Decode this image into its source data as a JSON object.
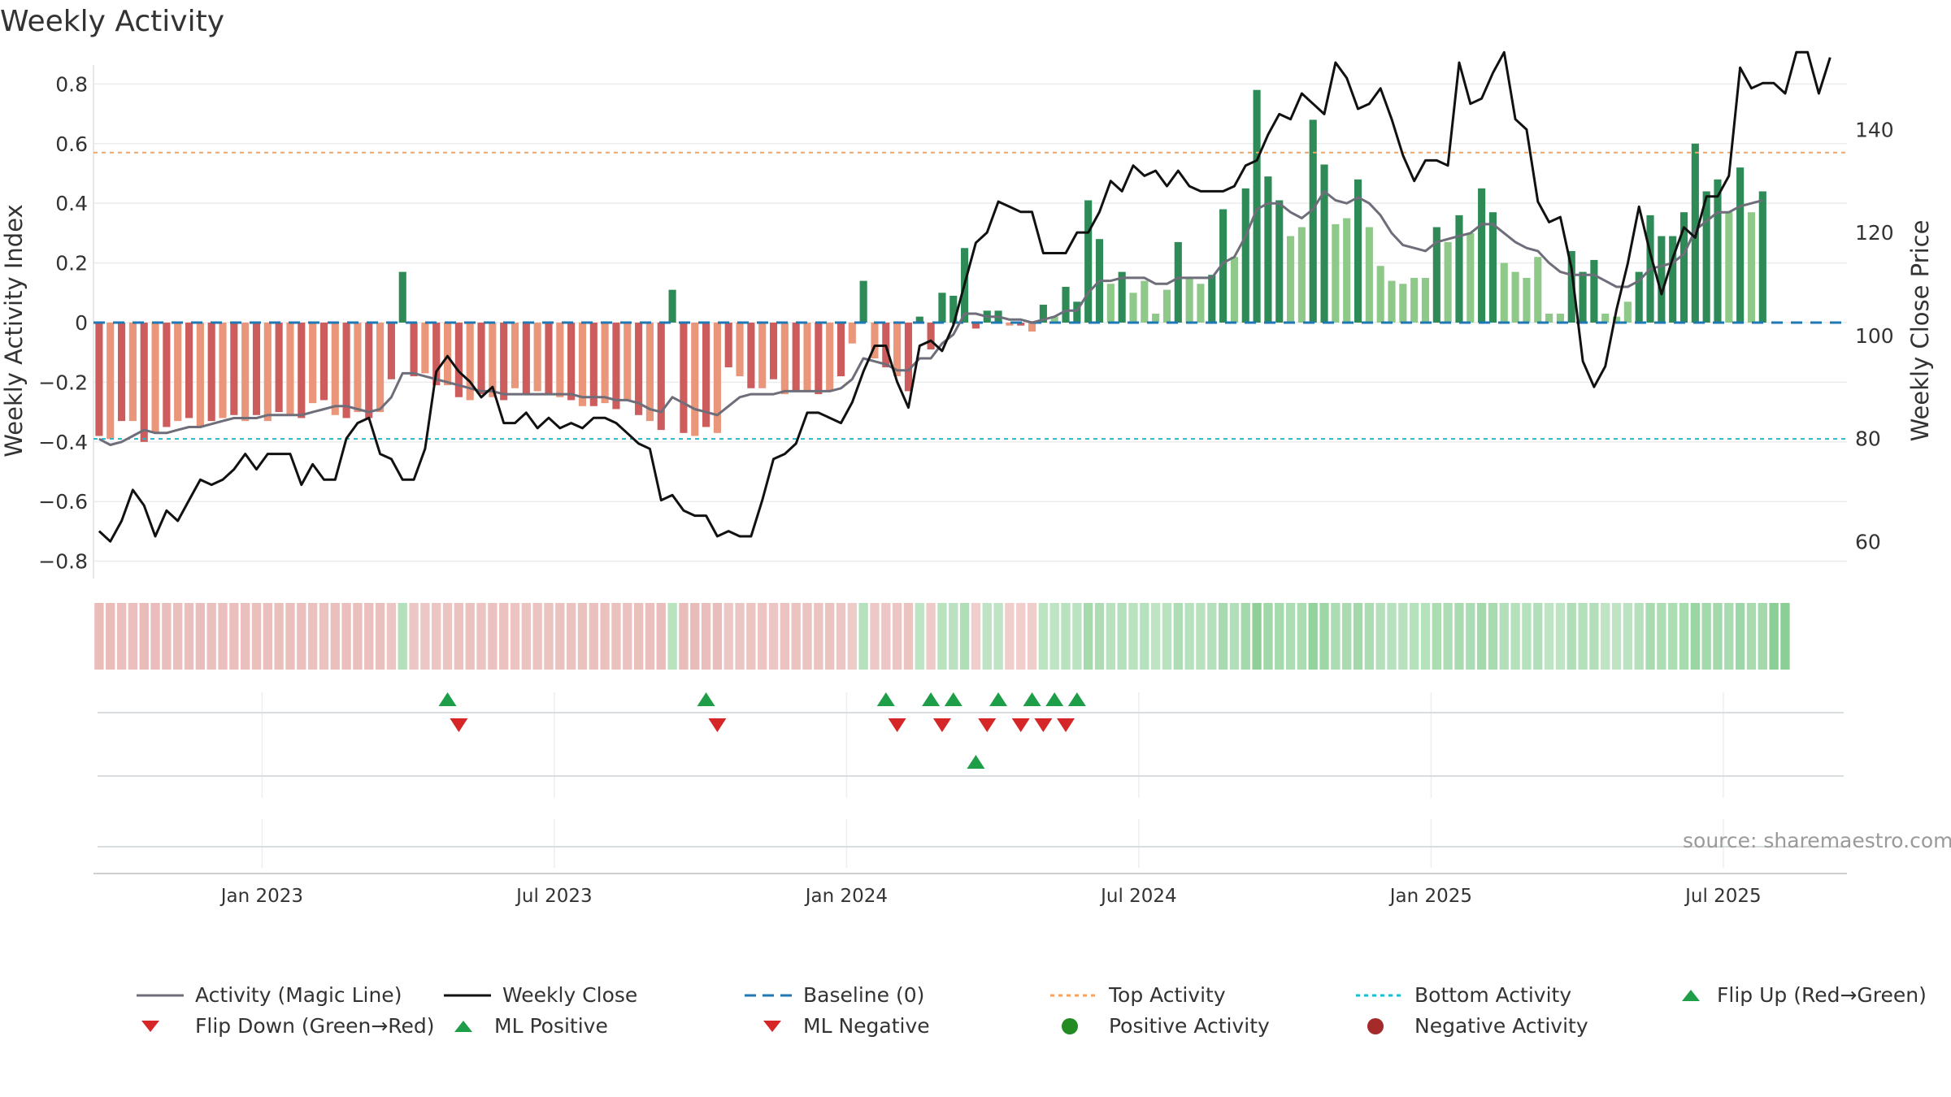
{
  "title": "Weekly Activity",
  "source": "source: sharemaestro.com",
  "colors": {
    "pos_strong": "#2e8b57",
    "pos_light": "#8fc98a",
    "neg_strong": "#cd5c5c",
    "neg_light": "#e9967a",
    "magic": "#6e6e7a",
    "close": "#111111",
    "baseline": "#1f77b4",
    "top": "#f4a460",
    "bottom": "#17becf",
    "flip_up": "#1f9e4a",
    "flip_down": "#d62728"
  },
  "chart_data": {
    "type": "bar",
    "title": "Weekly Activity",
    "ylabel": "Weekly Activity Index",
    "y2label": "Weekly Close Price",
    "ylim": [
      -0.82,
      0.82
    ],
    "y2lim": [
      55,
      150
    ],
    "yticks": [
      "0.8",
      "0.6",
      "0.4",
      "0.2",
      "0",
      "−0.2",
      "−0.4",
      "−0.6",
      "−0.8"
    ],
    "ytick_values": [
      0.8,
      0.6,
      0.4,
      0.2,
      0,
      -0.2,
      -0.4,
      -0.6,
      -0.8
    ],
    "y2ticks": [
      "140",
      "120",
      "100",
      "80",
      "60"
    ],
    "y2tick_values": [
      140,
      120,
      100,
      80,
      60
    ],
    "xticks": [
      "Jan 2023",
      "Jul 2023",
      "Jan 2024",
      "Jul 2024",
      "Jan 2025",
      "Jul 2025"
    ],
    "xtick_weeks": [
      15,
      41,
      67,
      93,
      119,
      145
    ],
    "top_activity": 0.57,
    "bottom_activity": -0.39,
    "activity": [
      -0.38,
      -0.39,
      -0.33,
      -0.33,
      -0.4,
      -0.37,
      -0.35,
      -0.33,
      -0.32,
      -0.35,
      -0.33,
      -0.32,
      -0.31,
      -0.33,
      -0.31,
      -0.33,
      -0.3,
      -0.31,
      -0.32,
      -0.27,
      -0.26,
      -0.31,
      -0.32,
      -0.3,
      -0.32,
      -0.3,
      -0.19,
      0.17,
      -0.18,
      -0.17,
      -0.21,
      -0.21,
      -0.25,
      -0.26,
      -0.24,
      -0.25,
      -0.26,
      -0.22,
      -0.24,
      -0.23,
      -0.24,
      -0.25,
      -0.26,
      -0.28,
      -0.28,
      -0.27,
      -0.29,
      -0.26,
      -0.31,
      -0.33,
      -0.36,
      0.11,
      -0.37,
      -0.38,
      -0.35,
      -0.37,
      -0.15,
      -0.18,
      -0.22,
      -0.22,
      -0.19,
      -0.24,
      -0.23,
      -0.23,
      -0.24,
      -0.23,
      -0.18,
      -0.07,
      0.14,
      -0.12,
      -0.15,
      -0.18,
      -0.23,
      0.02,
      -0.09,
      0.1,
      0.09,
      0.25,
      -0.02,
      0.04,
      0.04,
      -0.01,
      -0.01,
      -0.03,
      0.06,
      0.02,
      0.12,
      0.07,
      0.41,
      0.28,
      0.13,
      0.17,
      0.1,
      0.14,
      0.03,
      0.11,
      0.27,
      0.15,
      0.13,
      0.16,
      0.38,
      0.22,
      0.45,
      0.78,
      0.49,
      0.41,
      0.29,
      0.32,
      0.68,
      0.53,
      0.33,
      0.35,
      0.48,
      0.32,
      0.19,
      0.14,
      0.13,
      0.15,
      0.15,
      0.32,
      0.27,
      0.36,
      0.3,
      0.45,
      0.37,
      0.2,
      0.17,
      0.15,
      0.22,
      0.03,
      0.03,
      0.24,
      0.17,
      0.21,
      0.03,
      0.02,
      0.07,
      0.17,
      0.36,
      0.29,
      0.29,
      0.37,
      0.6,
      0.44,
      0.48,
      0.37,
      0.52,
      0.37,
      0.44
    ],
    "magic_line": [
      -0.39,
      -0.41,
      -0.4,
      -0.38,
      -0.36,
      -0.37,
      -0.37,
      -0.36,
      -0.35,
      -0.35,
      -0.34,
      -0.33,
      -0.32,
      -0.32,
      -0.32,
      -0.31,
      -0.31,
      -0.31,
      -0.31,
      -0.3,
      -0.29,
      -0.28,
      -0.28,
      -0.29,
      -0.3,
      -0.29,
      -0.25,
      -0.17,
      -0.17,
      -0.18,
      -0.19,
      -0.2,
      -0.21,
      -0.22,
      -0.23,
      -0.23,
      -0.24,
      -0.24,
      -0.24,
      -0.24,
      -0.24,
      -0.24,
      -0.24,
      -0.25,
      -0.25,
      -0.25,
      -0.26,
      -0.26,
      -0.27,
      -0.29,
      -0.3,
      -0.25,
      -0.27,
      -0.29,
      -0.3,
      -0.31,
      -0.28,
      -0.25,
      -0.24,
      -0.24,
      -0.24,
      -0.23,
      -0.23,
      -0.23,
      -0.23,
      -0.23,
      -0.22,
      -0.19,
      -0.12,
      -0.13,
      -0.14,
      -0.16,
      -0.16,
      -0.12,
      -0.12,
      -0.07,
      -0.04,
      0.03,
      0.03,
      0.02,
      0.02,
      0.01,
      0.01,
      0.0,
      0.01,
      0.02,
      0.04,
      0.04,
      0.1,
      0.14,
      0.14,
      0.15,
      0.15,
      0.15,
      0.13,
      0.13,
      0.15,
      0.15,
      0.15,
      0.15,
      0.2,
      0.22,
      0.29,
      0.38,
      0.4,
      0.4,
      0.37,
      0.35,
      0.38,
      0.44,
      0.41,
      0.4,
      0.42,
      0.4,
      0.36,
      0.3,
      0.26,
      0.25,
      0.24,
      0.27,
      0.28,
      0.29,
      0.3,
      0.33,
      0.33,
      0.3,
      0.27,
      0.25,
      0.24,
      0.2,
      0.17,
      0.16,
      0.16,
      0.16,
      0.14,
      0.12,
      0.12,
      0.14,
      0.18,
      0.19,
      0.2,
      0.23,
      0.31,
      0.34,
      0.37,
      0.37,
      0.39,
      0.4,
      0.41
    ],
    "weekly_close": [
      62,
      60,
      64,
      70,
      67,
      61,
      66,
      64,
      68,
      72,
      71,
      72,
      74,
      77,
      74,
      77,
      77,
      77,
      71,
      75,
      72,
      72,
      80,
      83,
      84,
      77,
      76,
      72,
      72,
      78,
      93,
      96,
      93,
      91,
      88,
      90,
      83,
      83,
      85,
      82,
      84,
      82,
      83,
      82,
      84,
      84,
      83,
      81,
      79,
      78,
      68,
      69,
      66,
      65,
      65,
      61,
      62,
      61,
      61,
      68,
      76,
      77,
      79,
      85,
      85,
      84,
      83,
      87,
      93,
      98,
      98,
      91,
      86,
      98,
      99,
      97,
      102,
      110,
      118,
      120,
      126,
      125,
      124,
      124,
      116,
      116,
      116,
      120,
      120,
      124,
      130,
      128,
      133,
      131,
      132,
      129,
      132,
      129,
      128,
      128,
      128,
      129,
      133,
      134,
      139,
      143,
      142,
      147,
      145,
      143,
      153,
      150,
      144,
      145,
      148,
      142,
      135,
      130,
      134,
      134,
      133,
      153,
      145,
      146,
      151,
      155,
      142,
      140,
      126,
      122,
      123,
      113,
      95,
      90,
      94,
      105,
      114,
      125,
      116,
      108,
      115,
      121,
      119,
      127,
      127,
      131,
      152,
      148,
      149,
      149,
      147,
      155,
      155,
      147,
      154
    ],
    "baseline": 0,
    "heat_strip": [
      "light-red",
      "light-red",
      "light-red",
      "light-red",
      "light-red",
      "light-red",
      "light-red",
      "light-red",
      "light-red",
      "light-red",
      "light-red",
      "light-red",
      "light-red",
      "light-red",
      "light-red",
      "light-red",
      "light-red",
      "light-red",
      "light-red",
      "light-red",
      "light-red",
      "light-red",
      "light-red",
      "light-red",
      "light-red",
      "light-red",
      "light-red",
      "green",
      "light-red",
      "light-red",
      "light-red",
      "light-red",
      "light-red",
      "light-red",
      "light-red",
      "light-red",
      "light-red",
      "light-red",
      "light-red",
      "light-red",
      "light-red",
      "light-red",
      "light-red",
      "light-red",
      "light-red",
      "light-red",
      "light-red",
      "light-red",
      "light-red",
      "light-red",
      "light-red",
      "green",
      "light-red",
      "light-red",
      "light-red",
      "light-red",
      "light-red",
      "light-red",
      "light-red",
      "light-red",
      "light-red",
      "light-red",
      "light-red",
      "light-red",
      "light-red",
      "light-red",
      "light-red",
      "light-red",
      "green",
      "light-red",
      "light-red",
      "light-red",
      "light-red",
      "green",
      "light-red",
      "green",
      "green",
      "green",
      "light-red",
      "green",
      "green",
      "light-red",
      "light-red",
      "light-red",
      "green",
      "green",
      "green",
      "green",
      "green",
      "green",
      "green",
      "green",
      "green",
      "green",
      "green",
      "green",
      "green",
      "green",
      "green",
      "green",
      "green",
      "green",
      "green",
      "green",
      "green",
      "green",
      "green",
      "green",
      "green",
      "green",
      "green",
      "green",
      "green",
      "green",
      "green",
      "green",
      "green",
      "green",
      "green",
      "green",
      "green",
      "green",
      "green",
      "green",
      "green",
      "green",
      "green",
      "green",
      "green",
      "green",
      "green",
      "green",
      "green",
      "green",
      "green",
      "green",
      "green",
      "green",
      "green",
      "green",
      "green",
      "green",
      "green",
      "green",
      "green",
      "green",
      "green",
      "green",
      "green",
      "green",
      "green"
    ],
    "flip_up_weeks": [
      31,
      54,
      70,
      74,
      76,
      80,
      83,
      85,
      87
    ],
    "flip_down_weeks": [
      32,
      55,
      71,
      75,
      79,
      82,
      84,
      86
    ],
    "ml_positive_weeks": [
      78
    ],
    "ml_negative_weeks": [],
    "weeks": 156
  },
  "legend": [
    {
      "label": "Activity (Magic Line)",
      "kind": "line",
      "color": "#6e6e7a"
    },
    {
      "label": "Weekly Close",
      "kind": "line",
      "color": "#111111"
    },
    {
      "label": "Baseline (0)",
      "kind": "dash",
      "color": "#1f77b4"
    },
    {
      "label": "Top Activity",
      "kind": "dot",
      "color": "#f4a460"
    },
    {
      "label": "Bottom Activity",
      "kind": "dot",
      "color": "#17becf"
    },
    {
      "label": "Flip Up (Red→Green)",
      "kind": "tri-up",
      "color": "#1f9e4a"
    },
    {
      "label": "Flip Down (Green→Red)",
      "kind": "tri-down",
      "color": "#d62728"
    },
    {
      "label": "ML Positive",
      "kind": "tri-up",
      "color": "#1f9e4a"
    },
    {
      "label": "ML Negative",
      "kind": "tri-down",
      "color": "#d62728"
    },
    {
      "label": "Positive Activity",
      "kind": "circle",
      "color": "#228b22"
    },
    {
      "label": "Negative Activity",
      "kind": "circle",
      "color": "#a52a2a"
    }
  ]
}
